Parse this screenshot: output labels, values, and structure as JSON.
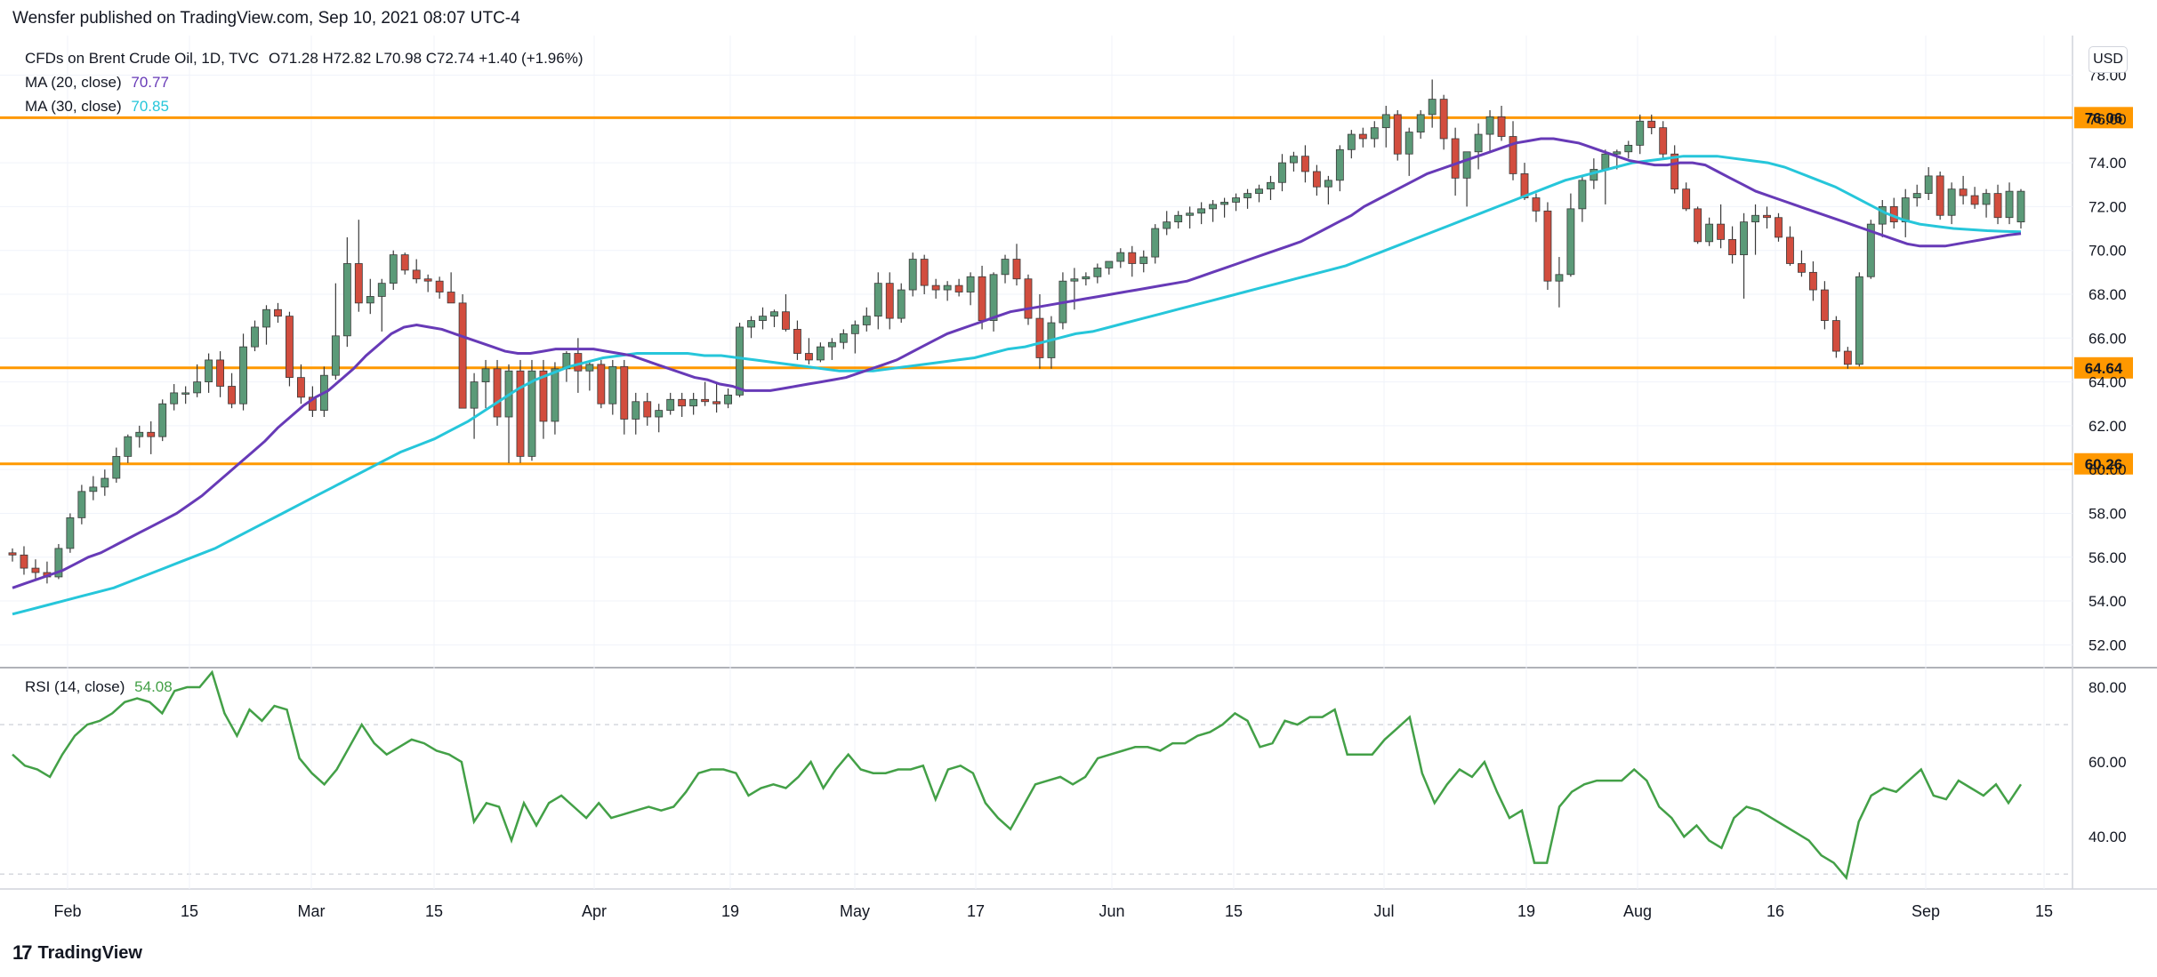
{
  "header": {
    "text": "Wensfer published on TradingView.com, Sep 10, 2021 08:07 UTC-4"
  },
  "legend": {
    "symbol": "CFDs on Brent Crude Oil, 1D, TVC",
    "ohlc": "O71.28  H72.82  L70.98  C72.74  +1.40 (+1.96%)",
    "ma20_label": "MA (20, close)",
    "ma20_value": "70.77",
    "ma30_label": "MA (30, close)",
    "ma30_value": "70.85",
    "rsi_label": "RSI (14, close)",
    "rsi_value": "54.08"
  },
  "currency": "USD",
  "footer": {
    "brand": "TradingView"
  },
  "colors": {
    "up": "#5b9a78",
    "down": "#d24d3e",
    "ma20": "#673ab7",
    "ma30": "#26c6da",
    "level": "#ff9800",
    "rsi": "#43a047",
    "grid": "#f0f3fa"
  },
  "chart_data": {
    "type": "candlestick",
    "y_ticks": [
      "78.00",
      "76.00",
      "74.00",
      "72.00",
      "70.00",
      "68.00",
      "66.00",
      "64.00",
      "62.00",
      "60.00",
      "58.00",
      "56.00",
      "54.00",
      "52.00"
    ],
    "ylim": [
      51,
      79.4
    ],
    "x_ticks": [
      "Feb",
      "15",
      "Mar",
      "15",
      "Apr",
      "19",
      "May",
      "17",
      "Jun",
      "15",
      "Jul",
      "19",
      "Aug",
      "16",
      "Sep",
      "15"
    ],
    "levels": [
      76.06,
      64.64,
      60.26
    ],
    "level_labels": [
      "76.06",
      "64.64",
      "60.26"
    ],
    "candles": [
      [
        56.2,
        56.4,
        55.8,
        56.1
      ],
      [
        56.1,
        56.5,
        55.2,
        55.5
      ],
      [
        55.5,
        55.9,
        55.0,
        55.3
      ],
      [
        55.3,
        55.8,
        54.8,
        55.1
      ],
      [
        55.1,
        56.6,
        55.0,
        56.4
      ],
      [
        56.4,
        58.0,
        56.2,
        57.8
      ],
      [
        57.8,
        59.3,
        57.5,
        59.0
      ],
      [
        59.0,
        59.7,
        58.6,
        59.2
      ],
      [
        59.2,
        60.0,
        58.8,
        59.6
      ],
      [
        59.6,
        61.0,
        59.4,
        60.6
      ],
      [
        60.6,
        61.6,
        60.3,
        61.5
      ],
      [
        61.5,
        62.0,
        61.0,
        61.7
      ],
      [
        61.7,
        62.2,
        60.7,
        61.5
      ],
      [
        61.5,
        63.2,
        61.3,
        63.0
      ],
      [
        63.0,
        63.9,
        62.7,
        63.5
      ],
      [
        63.5,
        63.8,
        63.0,
        63.5
      ],
      [
        63.5,
        64.8,
        63.3,
        64.0
      ],
      [
        64.0,
        65.3,
        63.5,
        65.0
      ],
      [
        65.0,
        65.4,
        63.3,
        63.8
      ],
      [
        63.8,
        64.4,
        62.8,
        63.0
      ],
      [
        63.0,
        66.2,
        62.7,
        65.6
      ],
      [
        65.6,
        66.8,
        65.4,
        66.5
      ],
      [
        66.5,
        67.5,
        65.7,
        67.3
      ],
      [
        67.3,
        67.6,
        66.7,
        67.0
      ],
      [
        67.0,
        67.2,
        63.8,
        64.2
      ],
      [
        64.2,
        64.8,
        63.0,
        63.3
      ],
      [
        63.3,
        63.8,
        62.4,
        62.7
      ],
      [
        62.7,
        64.7,
        62.4,
        64.3
      ],
      [
        64.3,
        68.5,
        64.1,
        66.1
      ],
      [
        66.1,
        70.6,
        65.6,
        69.4
      ],
      [
        69.4,
        71.4,
        67.2,
        67.6
      ],
      [
        67.6,
        68.7,
        67.1,
        67.9
      ],
      [
        67.9,
        68.7,
        66.3,
        68.5
      ],
      [
        68.5,
        70.0,
        68.2,
        69.8
      ],
      [
        69.8,
        69.9,
        68.9,
        69.1
      ],
      [
        69.1,
        69.6,
        68.5,
        68.7
      ],
      [
        68.7,
        68.9,
        68.1,
        68.6
      ],
      [
        68.6,
        68.8,
        67.8,
        68.1
      ],
      [
        68.1,
        69.0,
        67.7,
        67.6
      ],
      [
        67.6,
        68.0,
        63.0,
        62.8
      ],
      [
        62.8,
        64.4,
        61.4,
        64.0
      ],
      [
        64.0,
        65.0,
        62.8,
        64.6
      ],
      [
        64.6,
        65.0,
        62.0,
        62.4
      ],
      [
        62.4,
        64.8,
        60.3,
        64.5
      ],
      [
        64.5,
        65.0,
        60.3,
        60.6
      ],
      [
        60.6,
        65.0,
        60.4,
        64.5
      ],
      [
        64.5,
        65.0,
        61.4,
        62.2
      ],
      [
        62.2,
        64.9,
        61.6,
        64.6
      ],
      [
        64.6,
        65.4,
        64.0,
        65.3
      ],
      [
        65.3,
        66.0,
        63.5,
        64.5
      ],
      [
        64.5,
        65.0,
        63.6,
        64.8
      ],
      [
        64.8,
        65.0,
        62.8,
        63.0
      ],
      [
        63.0,
        65.0,
        62.5,
        64.7
      ],
      [
        64.7,
        65.0,
        61.6,
        62.3
      ],
      [
        62.3,
        63.5,
        61.6,
        63.1
      ],
      [
        63.1,
        63.5,
        62.0,
        62.4
      ],
      [
        62.4,
        63.0,
        61.7,
        62.7
      ],
      [
        62.7,
        63.5,
        62.5,
        63.2
      ],
      [
        63.2,
        63.5,
        62.4,
        62.9
      ],
      [
        62.9,
        63.5,
        62.5,
        63.2
      ],
      [
        63.2,
        64.0,
        62.9,
        63.1
      ],
      [
        63.1,
        64.0,
        62.6,
        63.0
      ],
      [
        63.0,
        63.7,
        62.8,
        63.4
      ],
      [
        63.4,
        66.7,
        63.3,
        66.5
      ],
      [
        66.5,
        67.0,
        66.0,
        66.8
      ],
      [
        66.8,
        67.4,
        66.4,
        67.0
      ],
      [
        67.0,
        67.3,
        66.5,
        67.2
      ],
      [
        67.2,
        68.0,
        66.3,
        66.4
      ],
      [
        66.4,
        66.8,
        65.0,
        65.3
      ],
      [
        65.3,
        66.0,
        64.8,
        65.0
      ],
      [
        65.0,
        65.8,
        64.9,
        65.6
      ],
      [
        65.6,
        66.0,
        65.0,
        65.8
      ],
      [
        65.8,
        66.4,
        65.5,
        66.2
      ],
      [
        66.2,
        66.8,
        65.3,
        66.6
      ],
      [
        66.6,
        67.4,
        66.3,
        67.0
      ],
      [
        67.0,
        69.0,
        66.4,
        68.5
      ],
      [
        68.5,
        69.0,
        66.4,
        66.9
      ],
      [
        66.9,
        68.5,
        66.7,
        68.2
      ],
      [
        68.2,
        69.9,
        67.9,
        69.6
      ],
      [
        69.6,
        69.8,
        68.0,
        68.4
      ],
      [
        68.4,
        68.7,
        67.8,
        68.2
      ],
      [
        68.2,
        68.6,
        67.7,
        68.4
      ],
      [
        68.4,
        68.7,
        67.9,
        68.1
      ],
      [
        68.1,
        69.0,
        67.5,
        68.8
      ],
      [
        68.8,
        69.3,
        66.4,
        66.8
      ],
      [
        66.8,
        69.0,
        66.3,
        68.9
      ],
      [
        68.9,
        69.8,
        68.5,
        69.6
      ],
      [
        69.6,
        70.3,
        68.4,
        68.7
      ],
      [
        68.7,
        68.9,
        66.6,
        66.9
      ],
      [
        66.9,
        68.0,
        64.6,
        65.1
      ],
      [
        65.1,
        67.0,
        64.6,
        66.7
      ],
      [
        66.7,
        69.0,
        66.4,
        68.6
      ],
      [
        68.6,
        69.2,
        67.3,
        68.7
      ],
      [
        68.7,
        69.0,
        68.4,
        68.8
      ],
      [
        68.8,
        69.4,
        68.5,
        69.2
      ],
      [
        69.2,
        69.5,
        68.9,
        69.5
      ],
      [
        69.5,
        70.1,
        69.2,
        69.9
      ],
      [
        69.9,
        70.2,
        68.8,
        69.4
      ],
      [
        69.4,
        70.0,
        69.0,
        69.7
      ],
      [
        69.7,
        71.2,
        69.4,
        71.0
      ],
      [
        71.0,
        71.8,
        70.7,
        71.3
      ],
      [
        71.3,
        71.8,
        71.0,
        71.6
      ],
      [
        71.6,
        72.0,
        71.0,
        71.7
      ],
      [
        71.7,
        72.2,
        71.2,
        71.9
      ],
      [
        71.9,
        72.3,
        71.3,
        72.1
      ],
      [
        72.1,
        72.4,
        71.5,
        72.2
      ],
      [
        72.2,
        72.6,
        71.8,
        72.4
      ],
      [
        72.4,
        72.8,
        71.9,
        72.6
      ],
      [
        72.6,
        73.0,
        72.2,
        72.8
      ],
      [
        72.8,
        73.4,
        72.3,
        73.1
      ],
      [
        73.1,
        74.4,
        72.7,
        74.0
      ],
      [
        74.0,
        74.5,
        73.6,
        74.3
      ],
      [
        74.3,
        74.8,
        73.1,
        73.6
      ],
      [
        73.6,
        73.9,
        72.5,
        72.9
      ],
      [
        72.9,
        73.4,
        72.1,
        73.2
      ],
      [
        73.2,
        74.8,
        72.7,
        74.6
      ],
      [
        74.6,
        75.5,
        74.2,
        75.3
      ],
      [
        75.3,
        75.6,
        74.7,
        75.1
      ],
      [
        75.1,
        75.9,
        74.7,
        75.6
      ],
      [
        75.6,
        76.6,
        74.7,
        76.2
      ],
      [
        76.2,
        76.4,
        74.1,
        74.4
      ],
      [
        74.4,
        75.6,
        73.4,
        75.4
      ],
      [
        75.4,
        76.4,
        75.1,
        76.2
      ],
      [
        76.2,
        77.8,
        75.6,
        76.9
      ],
      [
        76.9,
        77.1,
        74.6,
        75.1
      ],
      [
        75.1,
        75.6,
        72.5,
        73.3
      ],
      [
        73.3,
        74.5,
        72.0,
        74.5
      ],
      [
        74.5,
        75.8,
        73.7,
        75.3
      ],
      [
        75.3,
        76.4,
        74.5,
        76.1
      ],
      [
        76.1,
        76.6,
        75.0,
        75.2
      ],
      [
        75.2,
        75.9,
        73.2,
        73.5
      ],
      [
        73.5,
        74.0,
        72.3,
        72.4
      ],
      [
        72.4,
        72.6,
        71.3,
        71.8
      ],
      [
        71.8,
        72.2,
        68.2,
        68.6
      ],
      [
        68.6,
        69.7,
        67.4,
        68.9
      ],
      [
        68.9,
        72.6,
        68.8,
        71.9
      ],
      [
        71.9,
        73.4,
        71.3,
        73.2
      ],
      [
        73.2,
        74.2,
        72.8,
        73.7
      ],
      [
        73.7,
        74.6,
        72.1,
        74.4
      ],
      [
        74.4,
        74.6,
        73.7,
        74.5
      ],
      [
        74.5,
        75.0,
        74.2,
        74.8
      ],
      [
        74.8,
        76.2,
        74.4,
        75.9
      ],
      [
        75.9,
        76.2,
        75.3,
        75.6
      ],
      [
        75.6,
        75.9,
        74.2,
        74.4
      ],
      [
        74.4,
        74.8,
        72.6,
        72.8
      ],
      [
        72.8,
        73.1,
        71.8,
        71.9
      ],
      [
        71.9,
        72.0,
        70.3,
        70.4
      ],
      [
        70.4,
        71.5,
        70.2,
        71.2
      ],
      [
        71.2,
        72.1,
        70.1,
        70.5
      ],
      [
        70.5,
        71.1,
        69.4,
        69.8
      ],
      [
        69.8,
        71.7,
        67.8,
        71.3
      ],
      [
        71.3,
        72.1,
        69.8,
        71.6
      ],
      [
        71.6,
        72.0,
        71.0,
        71.5
      ],
      [
        71.5,
        71.7,
        70.4,
        70.6
      ],
      [
        70.6,
        71.1,
        69.3,
        69.4
      ],
      [
        69.4,
        70.0,
        68.8,
        69.0
      ],
      [
        69.0,
        69.5,
        67.7,
        68.2
      ],
      [
        68.2,
        68.6,
        66.4,
        66.8
      ],
      [
        66.8,
        67.0,
        65.1,
        65.4
      ],
      [
        65.4,
        65.6,
        64.6,
        64.8
      ],
      [
        64.8,
        69.0,
        64.7,
        68.8
      ],
      [
        68.8,
        71.4,
        68.7,
        71.2
      ],
      [
        71.2,
        72.3,
        70.6,
        72.0
      ],
      [
        72.0,
        72.4,
        71.0,
        71.3
      ],
      [
        71.3,
        72.8,
        70.6,
        72.4
      ],
      [
        72.4,
        73.0,
        72.0,
        72.6
      ],
      [
        72.6,
        73.8,
        72.3,
        73.4
      ],
      [
        73.4,
        73.6,
        71.4,
        71.6
      ],
      [
        71.6,
        73.1,
        71.2,
        72.8
      ],
      [
        72.8,
        73.4,
        72.1,
        72.5
      ],
      [
        72.5,
        72.9,
        71.9,
        72.1
      ],
      [
        72.1,
        72.8,
        71.5,
        72.6
      ],
      [
        72.6,
        73.0,
        71.2,
        71.5
      ],
      [
        71.5,
        73.1,
        71.2,
        72.7
      ],
      [
        71.3,
        72.8,
        71.0,
        72.7
      ]
    ],
    "ma20": [
      54.6,
      54.8,
      55.0,
      55.2,
      55.4,
      55.7,
      56.0,
      56.2,
      56.5,
      56.8,
      57.1,
      57.4,
      57.7,
      58.0,
      58.4,
      58.8,
      59.3,
      59.8,
      60.3,
      60.8,
      61.3,
      61.9,
      62.4,
      62.9,
      63.3,
      63.6,
      64.1,
      64.6,
      65.2,
      65.7,
      66.2,
      66.5,
      66.6,
      66.5,
      66.4,
      66.2,
      66.0,
      65.8,
      65.6,
      65.4,
      65.3,
      65.3,
      65.4,
      65.5,
      65.5,
      65.5,
      65.5,
      65.4,
      65.3,
      65.2,
      65.0,
      64.8,
      64.6,
      64.4,
      64.2,
      64.1,
      63.9,
      63.8,
      63.6,
      63.6,
      63.6,
      63.7,
      63.8,
      63.9,
      64.0,
      64.1,
      64.2,
      64.4,
      64.6,
      64.8,
      65.0,
      65.3,
      65.6,
      65.9,
      66.2,
      66.4,
      66.6,
      66.8,
      67.0,
      67.2,
      67.3,
      67.4,
      67.5,
      67.6,
      67.7,
      67.8,
      67.9,
      68.0,
      68.1,
      68.2,
      68.3,
      68.4,
      68.5,
      68.6,
      68.8,
      69.0,
      69.2,
      69.4,
      69.6,
      69.8,
      70.0,
      70.2,
      70.4,
      70.7,
      71.0,
      71.3,
      71.6,
      72.0,
      72.3,
      72.6,
      72.9,
      73.2,
      73.5,
      73.7,
      73.9,
      74.1,
      74.3,
      74.5,
      74.7,
      74.9,
      75.0,
      75.1,
      75.1,
      75.0,
      74.9,
      74.7,
      74.5,
      74.3,
      74.1,
      74.0,
      73.9,
      73.9,
      74.0,
      74.0,
      73.9,
      73.6,
      73.3,
      73.0,
      72.7,
      72.5,
      72.3,
      72.1,
      71.9,
      71.7,
      71.5,
      71.3,
      71.1,
      70.9,
      70.7,
      70.5,
      70.3,
      70.2,
      70.2,
      70.2,
      70.3,
      70.4,
      70.5,
      70.6,
      70.7,
      70.77
    ],
    "ma30": [
      53.4,
      53.6,
      53.8,
      54.0,
      54.2,
      54.4,
      54.6,
      54.9,
      55.2,
      55.5,
      55.8,
      56.1,
      56.4,
      56.8,
      57.2,
      57.6,
      58.0,
      58.4,
      58.8,
      59.2,
      59.6,
      60.0,
      60.4,
      60.8,
      61.1,
      61.4,
      61.8,
      62.2,
      62.7,
      63.2,
      63.7,
      64.1,
      64.4,
      64.7,
      64.9,
      65.1,
      65.2,
      65.3,
      65.3,
      65.3,
      65.3,
      65.2,
      65.2,
      65.1,
      65.0,
      64.9,
      64.8,
      64.7,
      64.6,
      64.5,
      64.5,
      64.5,
      64.6,
      64.7,
      64.8,
      64.9,
      65.0,
      65.1,
      65.3,
      65.5,
      65.6,
      65.8,
      66.0,
      66.2,
      66.3,
      66.5,
      66.7,
      66.9,
      67.1,
      67.3,
      67.5,
      67.7,
      67.9,
      68.1,
      68.3,
      68.5,
      68.7,
      68.9,
      69.1,
      69.3,
      69.6,
      69.9,
      70.2,
      70.5,
      70.8,
      71.1,
      71.4,
      71.7,
      72.0,
      72.3,
      72.6,
      72.9,
      73.2,
      73.4,
      73.6,
      73.8,
      74.0,
      74.1,
      74.2,
      74.3,
      74.3,
      74.3,
      74.2,
      74.1,
      74.0,
      73.8,
      73.5,
      73.2,
      72.9,
      72.5,
      72.1,
      71.7,
      71.4,
      71.2,
      71.1,
      71.0,
      70.95,
      70.9,
      70.87,
      70.85
    ],
    "rsi_ticks": [
      "80.00",
      "60.00",
      "40.00"
    ],
    "rsi_ylim": [
      26,
      85
    ],
    "rsi_bands": [
      70,
      30
    ],
    "rsi": [
      62,
      59,
      58,
      56,
      62,
      67,
      70,
      71,
      73,
      76,
      77,
      76,
      73,
      79,
      80,
      80,
      84,
      73,
      67,
      74,
      71,
      75,
      74,
      61,
      57,
      54,
      58,
      64,
      70,
      65,
      62,
      64,
      66,
      65,
      63,
      62,
      60,
      44,
      49,
      48,
      39,
      49,
      43,
      49,
      51,
      48,
      45,
      49,
      45,
      46,
      47,
      48,
      47,
      48,
      52,
      57,
      58,
      58,
      57,
      51,
      53,
      54,
      53,
      56,
      60,
      53,
      58,
      62,
      58,
      57,
      57,
      58,
      58,
      59,
      50,
      58,
      59,
      57,
      49,
      45,
      42,
      48,
      54,
      55,
      56,
      54,
      56,
      61,
      62,
      63,
      64,
      64,
      63,
      65,
      65,
      67,
      68,
      70,
      73,
      71,
      64,
      65,
      71,
      70,
      72,
      72,
      74,
      62,
      62,
      62,
      66,
      69,
      72,
      57,
      49,
      54,
      58,
      56,
      60,
      52,
      45,
      47,
      33,
      33,
      48,
      52,
      54,
      55,
      55,
      55,
      58,
      55,
      48,
      45,
      40,
      43,
      39,
      37,
      45,
      48,
      47,
      45,
      43,
      41,
      39,
      35,
      33,
      29,
      44,
      51,
      53,
      52,
      55,
      58,
      51,
      50,
      55,
      53,
      51,
      54,
      49,
      54
    ]
  }
}
